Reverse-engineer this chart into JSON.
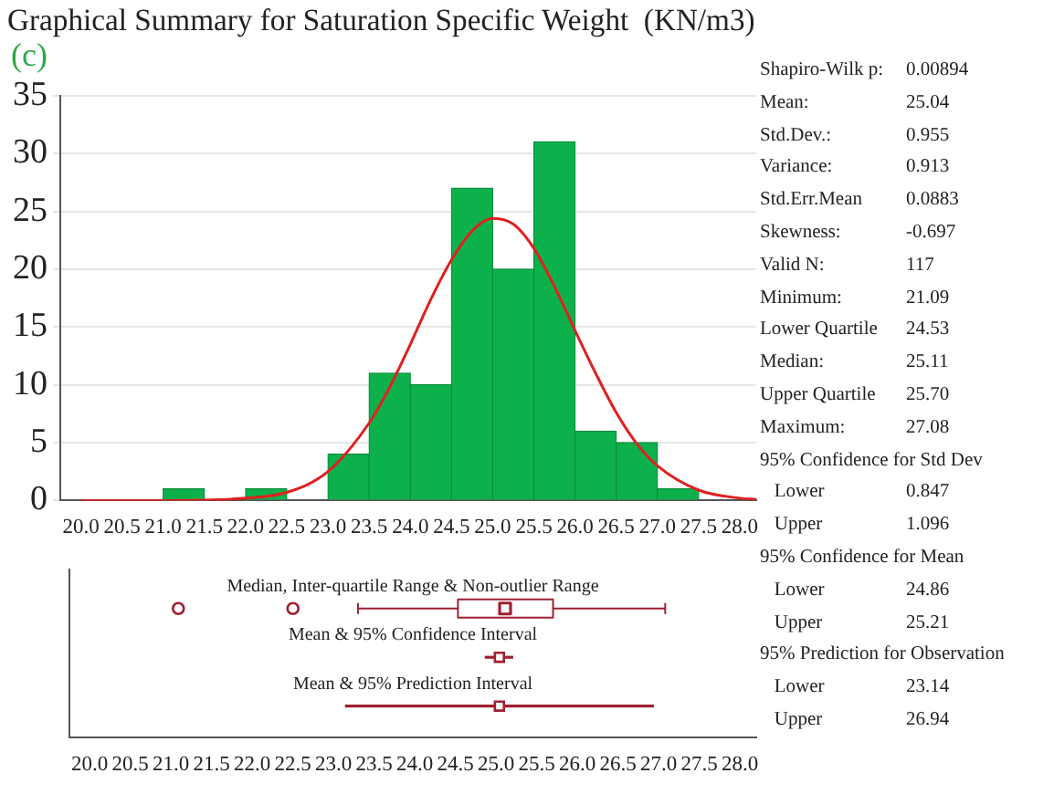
{
  "chart_data": [
    {
      "type": "histogram",
      "title": "Graphical Summary for Saturation Specific Weight  (KN/m3)",
      "annotations": [
        "(c)"
      ],
      "bins": [
        20,
        20.5,
        21,
        21.5,
        22,
        22.5,
        23,
        23.5,
        24,
        24.5,
        25,
        25.5,
        26,
        26.5,
        27,
        27.5,
        28
      ],
      "grid": "y",
      "xlim": [
        19.75,
        28.2
      ],
      "xticks": [
        {
          "value": 20,
          "label": "20.0"
        },
        20.5,
        {
          "value": 21,
          "label": "21.0"
        },
        21.5,
        {
          "value": 22,
          "label": "22.0"
        },
        22.5,
        {
          "value": 23,
          "label": "23.0"
        },
        23.5,
        {
          "value": 24,
          "label": "24.0"
        },
        24.5,
        {
          "value": 25,
          "label": "25.0"
        },
        25.5,
        {
          "value": 26,
          "label": "26.0"
        },
        26.5,
        {
          "value": 27,
          "label": "27.0"
        },
        27.5,
        {
          "value": 28,
          "label": "28.0"
        }
      ],
      "ylim": [
        0,
        35
      ],
      "yticks": [
        0,
        5,
        10,
        15,
        20,
        25,
        30,
        35
      ],
      "series": [
        {
          "type": "histogram",
          "color": "#0db14b",
          "values": [
            0,
            0,
            1,
            0,
            1,
            0,
            4,
            11,
            10,
            27,
            20,
            31,
            6,
            5,
            1,
            0
          ]
        },
        {
          "type": "line",
          "color": "#e02020",
          "x": [
            20,
            21,
            22,
            22.5,
            23,
            23.5,
            23.75,
            24,
            24.25,
            24.5,
            24.75,
            25,
            25.25,
            25.5,
            25.75,
            26,
            26.25,
            26.5,
            26.75,
            27,
            27.5,
            28,
            28.2
          ],
          "values": [
            0,
            0,
            0.2,
            0.7,
            2.5,
            6.7,
            9.8,
            13.5,
            17.4,
            20.8,
            23.3,
            24.4,
            23.9,
            21.8,
            18.5,
            14.7,
            11,
            7.6,
            4.9,
            3,
            0.9,
            0.2,
            0.1
          ]
        }
      ]
    },
    {
      "type": "box",
      "orientation": "horizontal",
      "categories": [
        "Median, Inter-quartile Range & Non-outlier Range",
        "Mean & 95% Confidence Interval",
        "Mean & 95% Prediction Interval"
      ],
      "xlim": [
        19.75,
        28.2
      ],
      "xticks": [
        {
          "value": 20,
          "label": "20.0"
        },
        20.5,
        {
          "value": 21,
          "label": "21.0"
        },
        21.5,
        {
          "value": 22,
          "label": "22.0"
        },
        22.5,
        {
          "value": 23,
          "label": "23.0"
        },
        23.5,
        {
          "value": 24,
          "label": "24.0"
        },
        24.5,
        {
          "value": 25,
          "label": "25.0"
        },
        25.5,
        {
          "value": 26,
          "label": "26.0"
        },
        26.5,
        {
          "value": 27,
          "label": "27.0"
        },
        27.5,
        {
          "value": 28,
          "label": "28.0"
        }
      ],
      "series": [
        {
          "type": "box",
          "color": "#a02030",
          "boxes": [
            {
              "low": 23.3,
              "q1": 24.53,
              "median": 25.11,
              "q3": 25.7,
              "high": 27.08,
              "outliers": [
                21.09,
                22.5
              ]
            },
            null,
            null
          ]
        },
        {
          "type": "scatter",
          "marker": "square",
          "color": "#a02030",
          "values": [
            null,
            25.04,
            25.04
          ],
          "errors": [
            null,
            [
              24.86,
              25.21
            ],
            [
              23.14,
              26.94
            ]
          ]
        }
      ]
    },
    {
      "type": "other",
      "annotations": [
        "Shapiro-Wilk p:\t0.00894",
        "Mean:\t25.04",
        "Std.Dev.:\t0.955",
        "Variance:\t0.913",
        "Std.Err.Mean\t0.0883",
        "Skewness:\t-0.697",
        "Valid N:\t117",
        "Minimum:\t21.09",
        "Lower Quartile\t24.53",
        "Median:\t25.11",
        "Upper Quartile\t25.70",
        "Maximum:\t27.08",
        "95% Confidence for Std Dev",
        "   Lower\t0.847",
        "   Upper\t1.096",
        "95% Confidence for Mean",
        "   Lower\t24.86",
        "   Upper\t25.21",
        "95% Prediction for Observation",
        "   Lower\t23.14",
        "   Upper\t26.94"
      ]
    }
  ]
}
